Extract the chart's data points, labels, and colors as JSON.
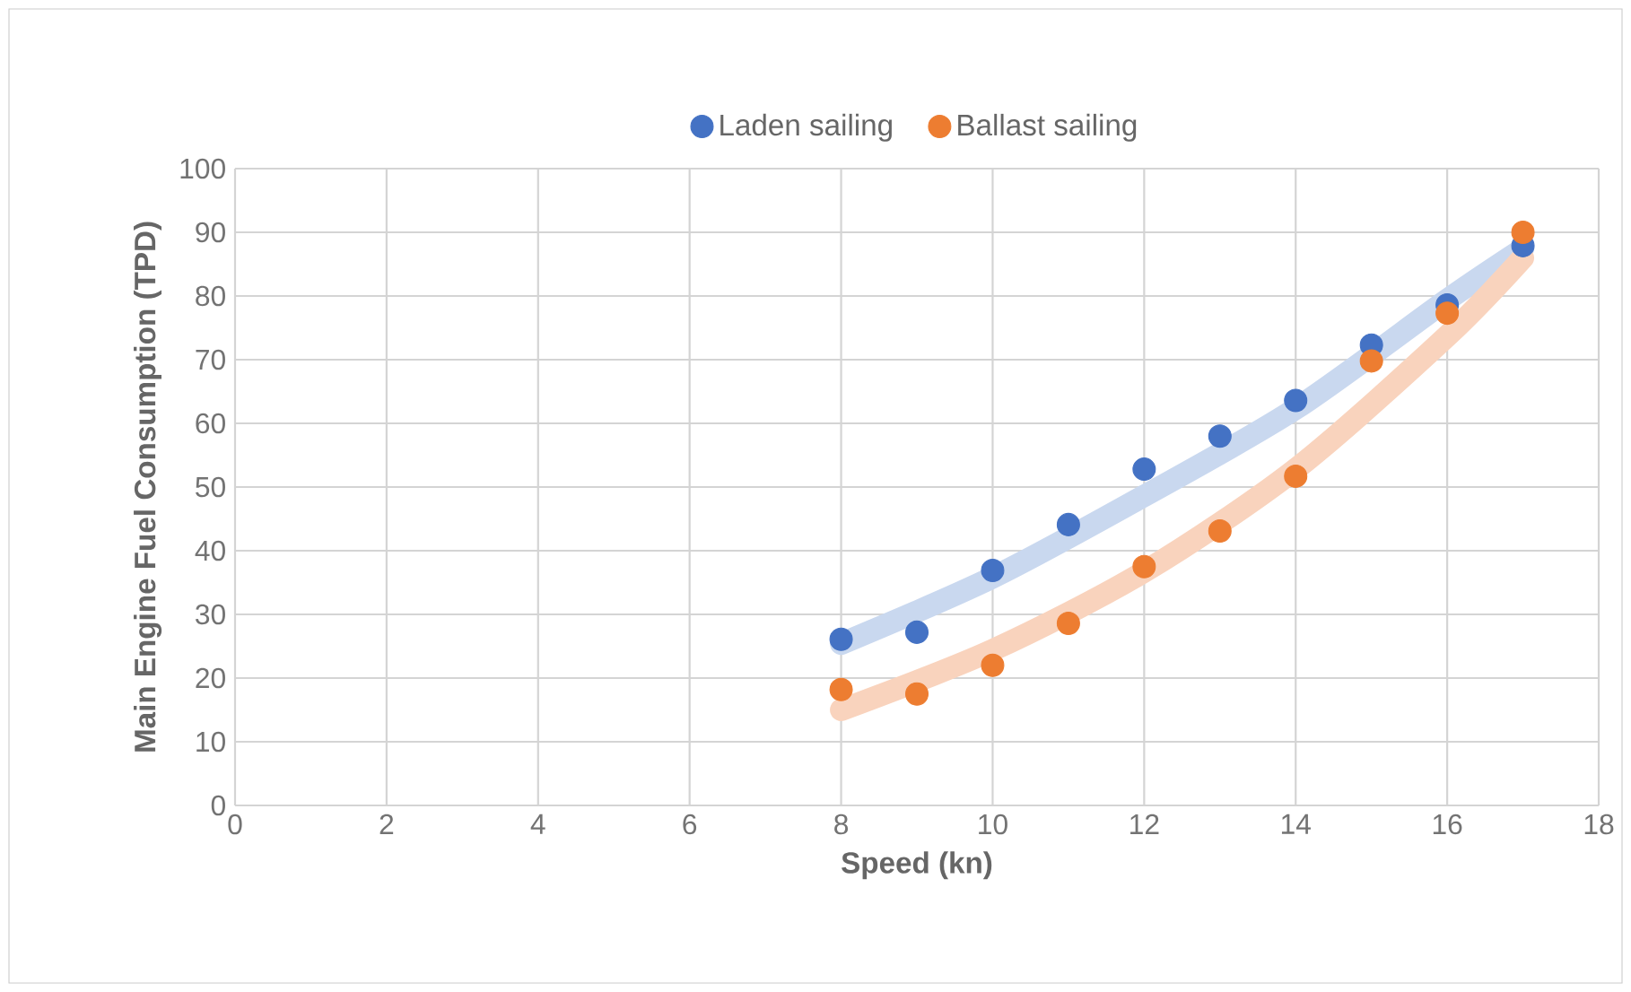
{
  "chart_data": {
    "type": "scatter",
    "xlabel": "Speed (kn)",
    "ylabel": "Main Engine Fuel Consumption (TPD)",
    "xlim": [
      0,
      18
    ],
    "ylim": [
      0,
      100
    ],
    "xticks": [
      0,
      2,
      4,
      6,
      8,
      10,
      12,
      14,
      16,
      18
    ],
    "yticks": [
      0,
      10,
      20,
      30,
      40,
      50,
      60,
      70,
      80,
      90,
      100
    ],
    "grid": true,
    "legend": "top",
    "marker": "circle",
    "series": [
      {
        "type": "line",
        "marker": "none",
        "color": "#c9d8ef",
        "x": [
          8,
          10,
          12,
          14,
          16,
          17
        ],
        "values": [
          25.4,
          35.8,
          48.6,
          62.3,
          79.4,
          87.4
        ]
      },
      {
        "type": "line",
        "marker": "none",
        "color": "#f9d3bd",
        "x": [
          8,
          10,
          12,
          14,
          16,
          17
        ],
        "values": [
          15.0,
          24.4,
          36.7,
          52.8,
          73.7,
          86.0
        ]
      },
      {
        "name": "Laden sailing",
        "color": "#4472c4",
        "x": [
          8,
          9,
          10,
          11,
          12,
          13,
          14,
          15,
          16,
          17
        ],
        "values": [
          26.1,
          27.2,
          36.9,
          44.1,
          52.8,
          58.0,
          63.6,
          72.3,
          78.6,
          87.9
        ]
      },
      {
        "name": "Ballast sailing",
        "color": "#ed7d31",
        "x": [
          8,
          9,
          10,
          11,
          12,
          13,
          14,
          15,
          16,
          17
        ],
        "values": [
          18.2,
          17.5,
          22.0,
          28.6,
          37.5,
          43.1,
          51.7,
          69.8,
          77.3,
          90.0
        ]
      }
    ]
  }
}
